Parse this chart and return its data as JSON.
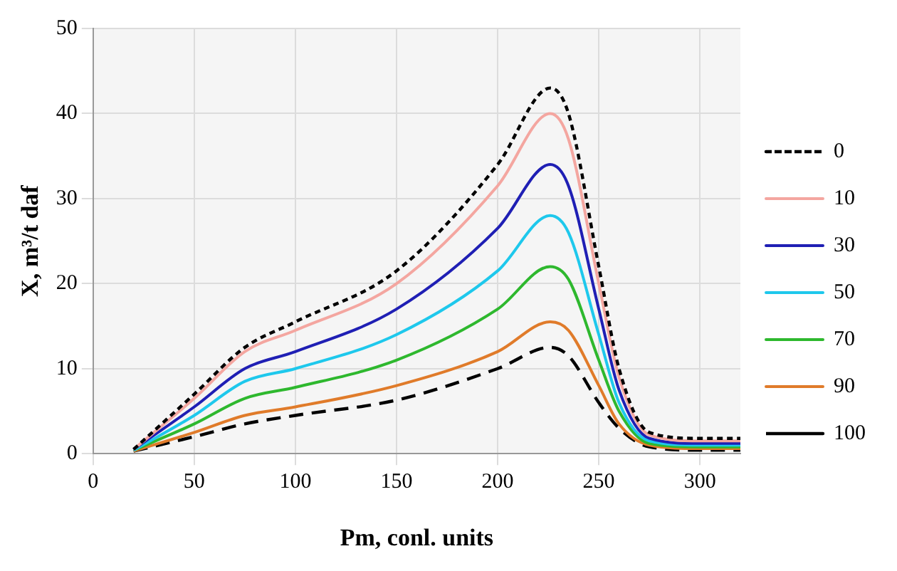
{
  "chart_data": {
    "type": "line",
    "xlabel": "Pm, conl. units",
    "ylabel": "X, m³/t daf",
    "x": [
      20,
      50,
      75,
      100,
      150,
      200,
      226,
      235,
      250,
      260,
      275,
      300,
      320
    ],
    "series": [
      {
        "name": "0",
        "color": "#000000",
        "line_style": "dotted",
        "values": [
          0.5,
          7,
          12.5,
          15.5,
          21.5,
          34,
          43,
          40,
          22,
          10,
          2.5,
          1.8,
          1.8
        ]
      },
      {
        "name": "10",
        "color": "#f4a6a0",
        "values": [
          0.5,
          6.5,
          12,
          14.5,
          20,
          31.5,
          40,
          37,
          20,
          9,
          2.2,
          1.5,
          1.5
        ]
      },
      {
        "name": "30",
        "color": "#1f1fb4",
        "values": [
          0.5,
          5.5,
          10,
          12,
          17,
          26.5,
          34,
          31.5,
          17,
          7.5,
          1.8,
          1.2,
          1.2
        ]
      },
      {
        "name": "50",
        "color": "#1ec8ec",
        "values": [
          0.4,
          4.5,
          8.5,
          10,
          14,
          21.5,
          28,
          26,
          14,
          6,
          1.5,
          1,
          1
        ]
      },
      {
        "name": "70",
        "color": "#2eb82e",
        "values": [
          0.4,
          3.5,
          6.5,
          7.8,
          11,
          17,
          22,
          20.5,
          11,
          5,
          1.2,
          0.8,
          0.8
        ]
      },
      {
        "name": "90",
        "color": "#e07b2a",
        "values": [
          0.3,
          2.5,
          4.5,
          5.5,
          8,
          12,
          15.5,
          14.5,
          8,
          3.5,
          1,
          0.6,
          0.6
        ]
      },
      {
        "name": "100",
        "color": "#000000",
        "line_style": "dashed",
        "values": [
          0.3,
          2,
          3.5,
          4.5,
          6.3,
          10,
          12.5,
          11.5,
          6,
          3,
          0.8,
          0.4,
          0.4
        ]
      }
    ],
    "xlim": [
      0,
      320
    ],
    "xticks": [
      0,
      50,
      100,
      150,
      200,
      250,
      300
    ],
    "ylim": [
      0,
      50
    ],
    "yticks": [
      0,
      10,
      20,
      30,
      40,
      50
    ],
    "grid": true,
    "legend": "right",
    "marker": "none",
    "line_style": "solid"
  }
}
